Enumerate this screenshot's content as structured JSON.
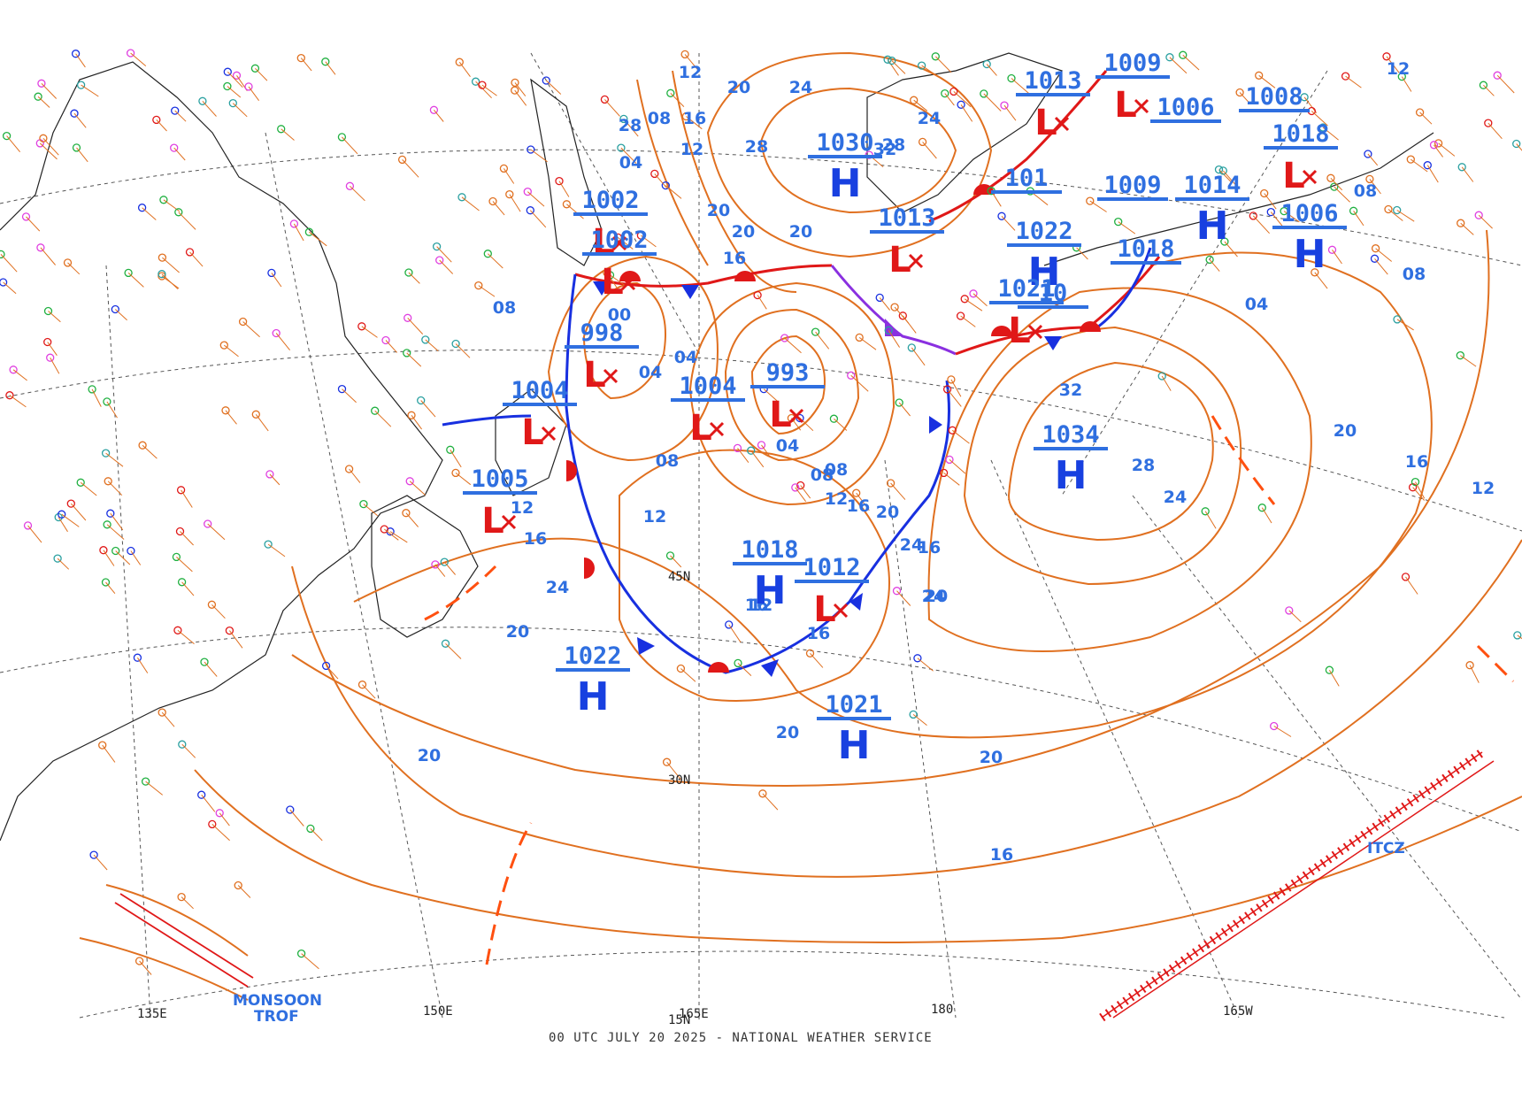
{
  "footer": "00 UTC JULY 20 2025 - NATIONAL WEATHER SERVICE",
  "colors": {
    "isobar": "#e07020",
    "high": "#1840e0",
    "low": "#e01818",
    "label": "#2f6fe0",
    "cold_front": "#1830e0",
    "warm_front": "#e01818",
    "occluded_front": "#8a30e0",
    "trough": "#ff5010",
    "grid": "#555555",
    "coast": "#222222",
    "station_green": "#20b040",
    "station_pink": "#e040e0"
  },
  "longitude_labels": [
    "135E",
    "150E",
    "165E",
    "180",
    "165W"
  ],
  "latitude_labels": [
    "15N",
    "30N",
    "45N"
  ],
  "features": {
    "monsoon_trof_line1": "MONSOON",
    "monsoon_trof_line2": "TROF",
    "itcz": "ITCZ"
  },
  "pressure_centers": [
    {
      "type": "H",
      "value": "1030"
    },
    {
      "type": "H",
      "value": "1034"
    },
    {
      "type": "H",
      "value": "1018"
    },
    {
      "type": "H",
      "value": "1022"
    },
    {
      "type": "H",
      "value": "1021"
    },
    {
      "type": "H",
      "value": "1006"
    },
    {
      "type": "H",
      "value": "1014"
    },
    {
      "type": "H",
      "value": "1022"
    },
    {
      "type": "L",
      "value": "1002"
    },
    {
      "type": "L",
      "value": "1002"
    },
    {
      "type": "L",
      "value": "998"
    },
    {
      "type": "L",
      "value": "1004"
    },
    {
      "type": "L",
      "value": "1004"
    },
    {
      "type": "L",
      "value": "1005"
    },
    {
      "type": "L",
      "value": "993"
    },
    {
      "type": "L",
      "value": "1012"
    },
    {
      "type": "L",
      "value": "1013"
    },
    {
      "type": "L",
      "value": "1013"
    },
    {
      "type": "L",
      "value": "1009"
    },
    {
      "type": "L",
      "value": "1018"
    },
    {
      "type": "L",
      "value": "1021"
    }
  ],
  "other_values": [
    "1008",
    "1006",
    "1009",
    "1018",
    "101",
    "10"
  ],
  "isobar_labels": [
    "12",
    "20",
    "24",
    "16",
    "28",
    "20",
    "20",
    "04",
    "08",
    "12",
    "16",
    "20",
    "24",
    "28",
    "32",
    "32",
    "28",
    "24",
    "20",
    "16",
    "12",
    "08",
    "04",
    "08",
    "12",
    "16",
    "20",
    "24",
    "20",
    "16",
    "12",
    "08",
    "20",
    "16",
    "12",
    "24",
    "20",
    "16",
    "04",
    "08",
    "12",
    "16",
    "20",
    "24",
    "28",
    "04",
    "08",
    "00",
    "04",
    "08",
    "12",
    "16",
    "20"
  ]
}
